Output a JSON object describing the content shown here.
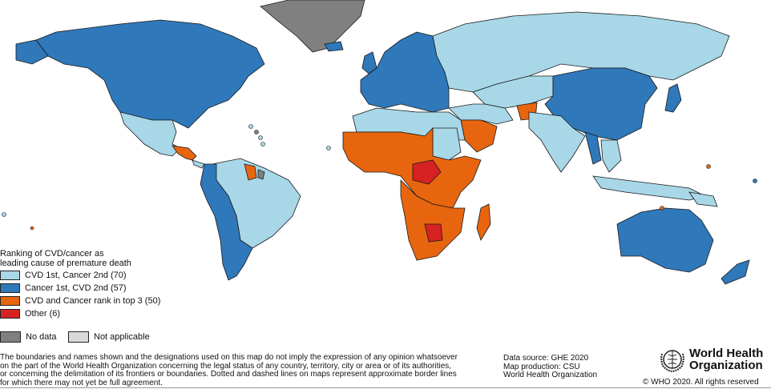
{
  "legend": {
    "title_line1": "Ranking of CVD/cancer as",
    "title_line2": "leading cause of premature death",
    "items": [
      {
        "label": "CVD 1st, Cancer 2nd (70)",
        "color": "#a8d8e8"
      },
      {
        "label": "Cancer 1st, CVD 2nd (57)",
        "color": "#2f78ba"
      },
      {
        "label": "CVD and Cancer rank in top 3 (50)",
        "color": "#e8650f"
      },
      {
        "label": "Other (6)",
        "color": "#d62222"
      }
    ],
    "no_data": {
      "label": "No data",
      "color": "#808080"
    },
    "not_applicable": {
      "label": "Not applicable",
      "color": "#d9d9d9"
    }
  },
  "disclaimer": [
    "The boundaries and names shown and the designations used on this map do not imply the expression of any opinion whatsoever",
    "on the part of the World Health Organization concerning the legal status of any country, territory, city or area or of its authorities,",
    "or concerning the delimitation of its frontiers or boundaries. Dotted and dashed lines on maps represent approximate border lines",
    "for which there may not yet be full agreement."
  ],
  "source": {
    "line1": "Data source: GHE 2020",
    "line2": "Map production: CSU",
    "line3": "World Health Organization"
  },
  "logo": {
    "line1": "World Health",
    "line2": "Organization"
  },
  "copyright": "© WHO 2020. All rights reserved"
}
